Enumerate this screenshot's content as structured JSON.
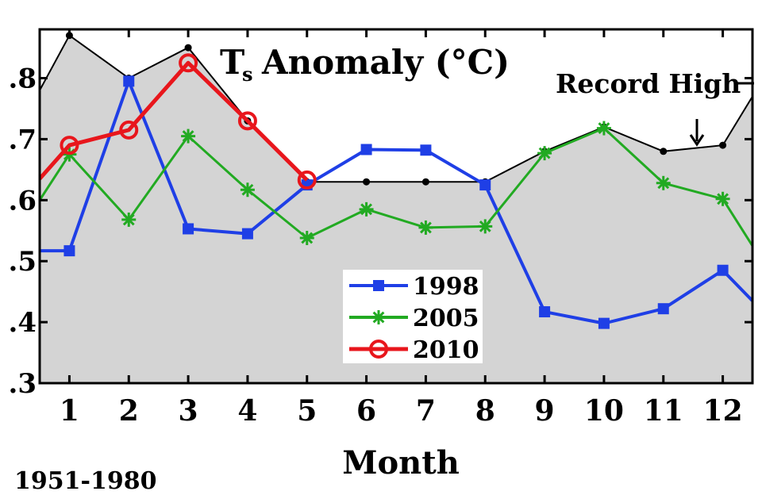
{
  "chart_data": {
    "type": "line",
    "title": "Anomaly (°C)",
    "title_symbol": "T",
    "title_subscript": "s",
    "xlabel": "Month",
    "categories": [
      "1",
      "2",
      "3",
      "4",
      "5",
      "6",
      "7",
      "8",
      "9",
      "10",
      "11",
      "12"
    ],
    "x": [
      1,
      2,
      3,
      4,
      5,
      6,
      7,
      8,
      9,
      10,
      11,
      12
    ],
    "xlim": [
      0.5,
      12.5
    ],
    "ylim": [
      0.3,
      0.88
    ],
    "y_ticks": [
      0.3,
      0.4,
      0.5,
      0.6,
      0.7,
      0.8
    ],
    "y_tick_labels": [
      ".3",
      ".4",
      ".5",
      ".6",
      ".7",
      ".8"
    ],
    "grid": false,
    "legend_placement": "center",
    "record_high": {
      "label": "Record High",
      "x": [
        0.5,
        1,
        2,
        3,
        4,
        5,
        6,
        7,
        8,
        9,
        10,
        11,
        12,
        12.5
      ],
      "values": [
        0.78,
        0.87,
        0.8,
        0.85,
        0.73,
        0.63,
        0.63,
        0.63,
        0.63,
        0.68,
        0.72,
        0.68,
        0.69,
        0.77
      ],
      "fill": "#d4d4d4",
      "color": "#000000"
    },
    "series": [
      {
        "name": "1998",
        "color": "#1f3fe6",
        "marker": "square",
        "x": [
          0.5,
          1,
          2,
          3,
          4,
          5,
          6,
          7,
          8,
          9,
          10,
          11,
          12,
          12.5
        ],
        "values": [
          0.517,
          0.517,
          0.795,
          0.553,
          0.545,
          0.625,
          0.683,
          0.682,
          0.625,
          0.417,
          0.398,
          0.422,
          0.485,
          0.435
        ]
      },
      {
        "name": "2005",
        "color": "#22aa22",
        "marker": "star",
        "x": [
          0.5,
          1,
          2,
          3,
          4,
          5,
          6,
          7,
          8,
          9,
          10,
          11,
          12,
          12.5
        ],
        "values": [
          0.6,
          0.675,
          0.568,
          0.705,
          0.617,
          0.538,
          0.585,
          0.555,
          0.557,
          0.677,
          0.718,
          0.628,
          0.602,
          0.525
        ]
      },
      {
        "name": "2010",
        "color": "#e8161c",
        "marker": "circle",
        "x": [
          0.5,
          1,
          2,
          3,
          4,
          5
        ],
        "values": [
          0.635,
          0.69,
          0.715,
          0.825,
          0.73,
          0.633
        ]
      }
    ]
  },
  "footnote": "1951-1980"
}
